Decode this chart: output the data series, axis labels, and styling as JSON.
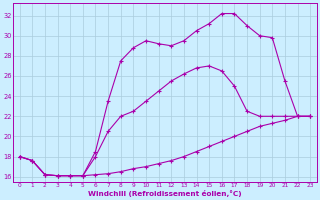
{
  "xlabel": "Windchill (Refroidissement éolien,°C)",
  "bg_color": "#cceeff",
  "grid_color": "#aaccdd",
  "line_color": "#aa00aa",
  "xlim": [
    -0.5,
    23.5
  ],
  "ylim": [
    15.5,
    33.2
  ],
  "xticks": [
    0,
    1,
    2,
    3,
    4,
    5,
    6,
    7,
    8,
    9,
    10,
    11,
    12,
    13,
    14,
    15,
    16,
    17,
    18,
    19,
    20,
    21,
    22,
    23
  ],
  "yticks": [
    16,
    18,
    20,
    22,
    24,
    26,
    28,
    30,
    32
  ],
  "curve_bottom_x": [
    0,
    1,
    2,
    3,
    4,
    5,
    6,
    7,
    8,
    9,
    10,
    11,
    12,
    13,
    14,
    15,
    16,
    17,
    18,
    19,
    20,
    21,
    22,
    23
  ],
  "curve_bottom_y": [
    18.0,
    17.6,
    16.2,
    16.1,
    16.1,
    16.1,
    16.2,
    16.3,
    16.5,
    16.8,
    17.0,
    17.3,
    17.6,
    18.0,
    18.5,
    19.0,
    19.5,
    20.0,
    20.5,
    21.0,
    21.3,
    21.6,
    22.0,
    22.0
  ],
  "curve_mid_x": [
    0,
    1,
    2,
    3,
    4,
    5,
    6,
    7,
    8,
    9,
    10,
    11,
    12,
    13,
    14,
    15,
    16,
    17,
    18,
    19,
    20,
    21,
    22,
    23
  ],
  "curve_mid_y": [
    18.0,
    17.6,
    16.2,
    16.1,
    16.1,
    16.1,
    18.0,
    20.5,
    22.0,
    22.5,
    23.5,
    24.5,
    25.5,
    26.2,
    26.8,
    27.0,
    26.5,
    25.0,
    22.5,
    22.0,
    22.0,
    22.0,
    22.0,
    22.0
  ],
  "curve_top_x": [
    0,
    1,
    2,
    3,
    4,
    5,
    6,
    7,
    8,
    9,
    10,
    11,
    12,
    13,
    14,
    15,
    16,
    17,
    18,
    19,
    20,
    21,
    22,
    23
  ],
  "curve_top_y": [
    18.0,
    17.6,
    16.2,
    16.1,
    16.1,
    16.1,
    18.5,
    23.5,
    27.5,
    28.8,
    29.5,
    29.2,
    29.0,
    29.5,
    30.5,
    31.2,
    32.2,
    32.2,
    31.0,
    30.0,
    29.8,
    25.5,
    22.0,
    22.0
  ]
}
